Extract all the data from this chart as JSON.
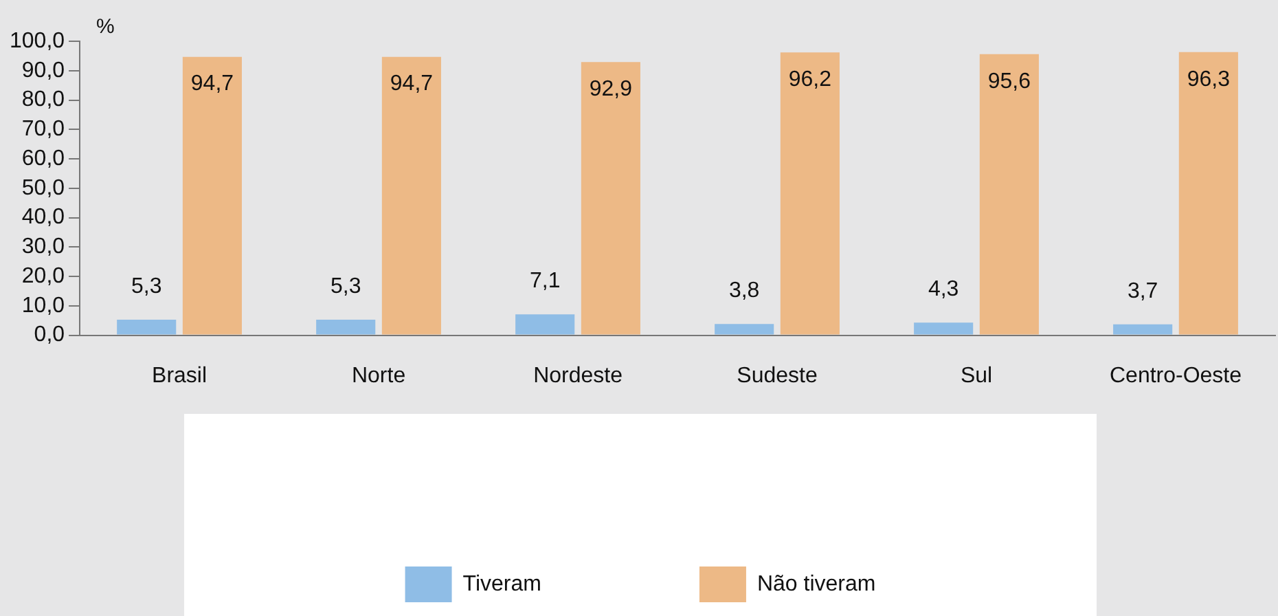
{
  "chart_data": {
    "type": "bar",
    "ylabel": "%",
    "categories": [
      "Brasil",
      "Norte",
      "Nordeste",
      "Sudeste",
      "Sul",
      "Centro-Oeste"
    ],
    "series": [
      {
        "name": "Tiveram",
        "color": "#8fbde6",
        "values": [
          5.3,
          5.3,
          7.1,
          3.8,
          4.3,
          3.7
        ],
        "value_labels": [
          "5,3",
          "5,3",
          "7,1",
          "3,8",
          "4,3",
          "3,7"
        ]
      },
      {
        "name": "Não tiveram",
        "color": "#edb986",
        "values": [
          94.7,
          94.7,
          92.9,
          96.2,
          95.6,
          96.3
        ],
        "value_labels": [
          "94,7",
          "94,7",
          "92,9",
          "96,2",
          "95,6",
          "96,3"
        ]
      }
    ],
    "ylim": [
      0,
      100
    ],
    "yticks": [
      {
        "value": 0,
        "label": "0,0"
      },
      {
        "value": 10,
        "label": "10,0"
      },
      {
        "value": 20,
        "label": "20,0"
      },
      {
        "value": 30,
        "label": "30,0"
      },
      {
        "value": 40,
        "label": "40,0"
      },
      {
        "value": 50,
        "label": "50,0"
      },
      {
        "value": 60,
        "label": "60,0"
      },
      {
        "value": 70,
        "label": "70,0"
      },
      {
        "value": 80,
        "label": "80,0"
      },
      {
        "value": 90,
        "label": "90,0"
      },
      {
        "value": 100,
        "label": "100,0"
      }
    ],
    "grid": false,
    "legend": "bottom"
  }
}
